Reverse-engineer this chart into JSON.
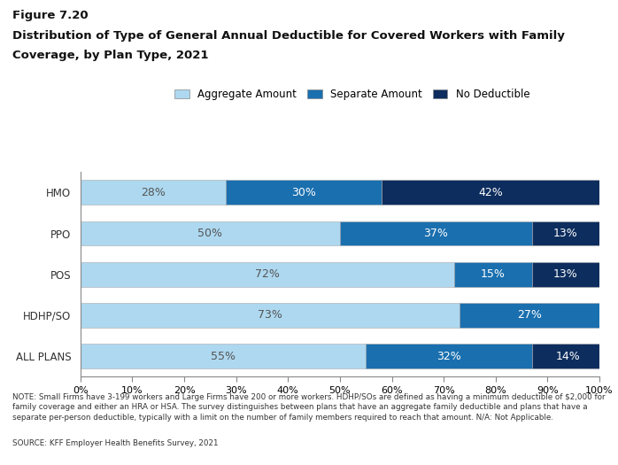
{
  "title_line1": "Figure 7.20",
  "title_line2": "Distribution of Type of General Annual Deductible for Covered Workers with Family",
  "title_line3": "Coverage, by Plan Type, 2021",
  "categories": [
    "HMO",
    "PPO",
    "POS",
    "HDHP/SO",
    "ALL PLANS"
  ],
  "aggregate": [
    28,
    50,
    72,
    73,
    55
  ],
  "separate": [
    30,
    37,
    15,
    27,
    32
  ],
  "no_deductible": [
    42,
    13,
    13,
    0,
    14
  ],
  "color_aggregate": "#add8f0",
  "color_separate": "#1a6faf",
  "color_no_deductible": "#0d2d5e",
  "legend_labels": [
    "Aggregate Amount",
    "Separate Amount",
    "No Deductible"
  ],
  "note_text": "NOTE: Small Firms have 3-199 workers and Large Firms have 200 or more workers. HDHP/SOs are defined as having a minimum deductible of $2,000 for\nfamily coverage and either an HRA or HSA. The survey distinguishes between plans that have an aggregate family deductible and plans that have a\nseparate per-person deductible, typically with a limit on the number of family members required to reach that amount. N/A: Not Applicable.",
  "source_line": "SOURCE: KFF Employer Health Benefits Survey, 2021",
  "background_color": "#ffffff",
  "text_color_dark": "#555555",
  "text_color_white": "#ffffff"
}
